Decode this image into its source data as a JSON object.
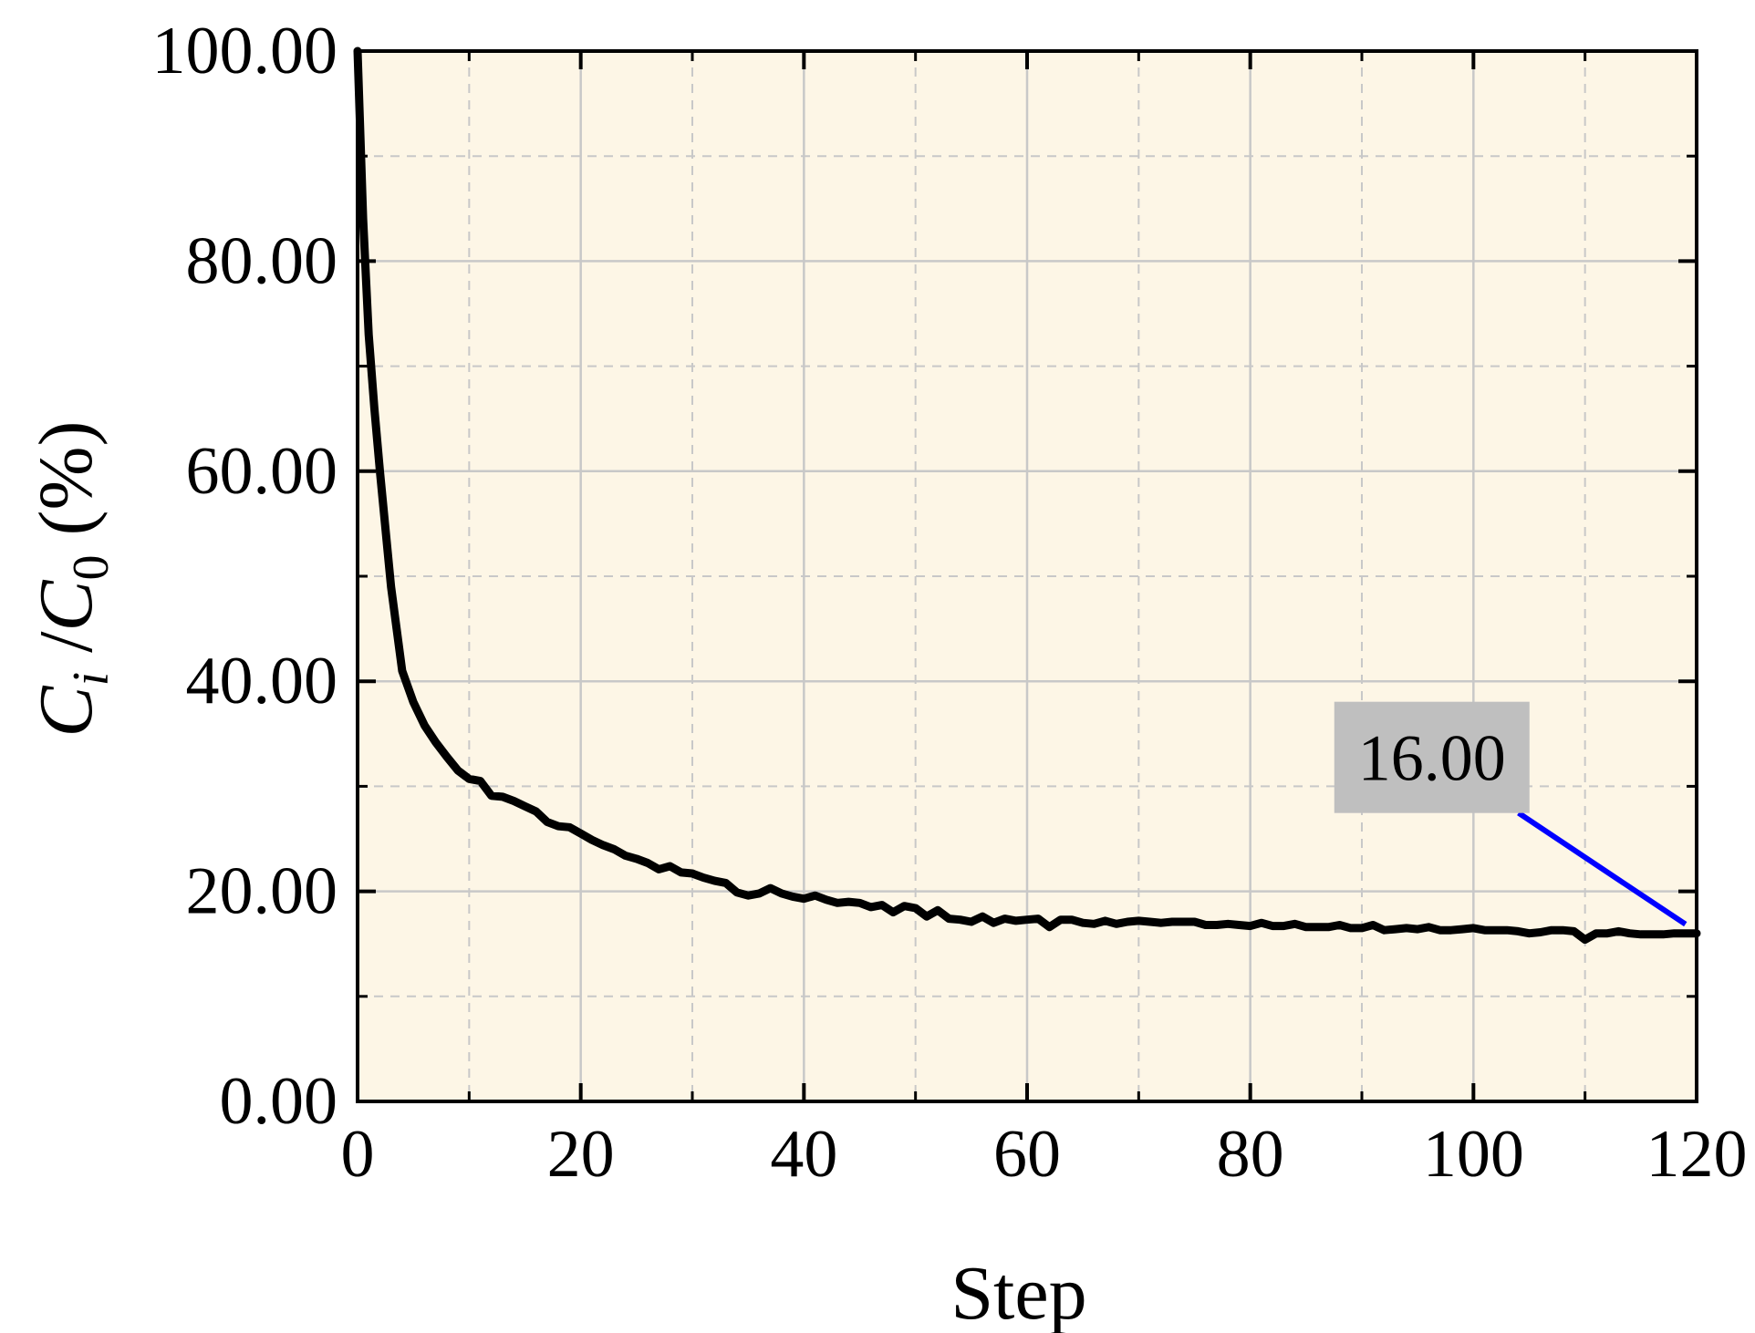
{
  "chart_data": {
    "type": "line",
    "xlabel": "Step",
    "ylabel": {
      "main": "C",
      "sub": "i",
      "sep": " /",
      "main2": "C",
      "sub2": "0",
      "unit": " (%)"
    },
    "xlim": [
      0,
      120
    ],
    "ylim": [
      0,
      100
    ],
    "x_ticks": [
      "0",
      "20",
      "40",
      "60",
      "80",
      "100",
      "120"
    ],
    "y_ticks": [
      "0.00",
      "20.00",
      "40.00",
      "60.00",
      "80.00",
      "100.00"
    ],
    "grid": true,
    "colors": {
      "plot_background": "#fdf6e6",
      "line": "#000000",
      "grid": "#c8c8c8",
      "annotation_box": "#bfbfbf",
      "annotation_leader": "#0000ff"
    },
    "series": [
      {
        "x": [
          0,
          0.5,
          1,
          1.5,
          2,
          3,
          4,
          5,
          6,
          7,
          8,
          9,
          10,
          11,
          12,
          13,
          14,
          15,
          16,
          17,
          18,
          19,
          20,
          21,
          22,
          23,
          24,
          25,
          26,
          27,
          28,
          29,
          30,
          31,
          32,
          33,
          34,
          35,
          36,
          37,
          38,
          39,
          40,
          41,
          42,
          43,
          44,
          45,
          46,
          47,
          48,
          49,
          50,
          51,
          52,
          53,
          54,
          55,
          56,
          57,
          58,
          59,
          60,
          61,
          62,
          63,
          64,
          65,
          66,
          67,
          68,
          69,
          70,
          71,
          72,
          73,
          74,
          75,
          76,
          77,
          78,
          79,
          80,
          81,
          82,
          83,
          84,
          85,
          86,
          87,
          88,
          89,
          90,
          91,
          92,
          93,
          94,
          95,
          96,
          97,
          98,
          99,
          100,
          101,
          102,
          103,
          104,
          105,
          106,
          107,
          108,
          109,
          110,
          111,
          112,
          113,
          114,
          115,
          116,
          117,
          118,
          119,
          120
        ],
        "y": [
          100,
          84,
          73,
          66,
          60,
          49,
          41,
          38,
          35.8,
          34.2,
          32.8,
          31.5,
          30.7,
          30.5,
          29.1,
          29.0,
          28.6,
          28.1,
          27.6,
          26.6,
          26.2,
          26.1,
          25.5,
          24.9,
          24.4,
          24.0,
          23.4,
          23.1,
          22.7,
          22.1,
          22.4,
          21.8,
          21.7,
          21.3,
          21.0,
          20.8,
          19.9,
          19.6,
          19.8,
          20.3,
          19.8,
          19.5,
          19.3,
          19.6,
          19.2,
          18.9,
          19.0,
          18.9,
          18.5,
          18.7,
          18.0,
          18.6,
          18.4,
          17.6,
          18.2,
          17.4,
          17.3,
          17.1,
          17.6,
          17.0,
          17.4,
          17.2,
          17.3,
          17.4,
          16.6,
          17.3,
          17.3,
          17.0,
          16.9,
          17.2,
          16.9,
          17.1,
          17.2,
          17.1,
          17.0,
          17.1,
          17.1,
          17.1,
          16.8,
          16.8,
          16.9,
          16.8,
          16.7,
          17.0,
          16.7,
          16.7,
          16.9,
          16.6,
          16.6,
          16.6,
          16.8,
          16.5,
          16.5,
          16.8,
          16.3,
          16.4,
          16.5,
          16.4,
          16.6,
          16.3,
          16.3,
          16.4,
          16.5,
          16.3,
          16.3,
          16.3,
          16.2,
          16.0,
          16.1,
          16.3,
          16.3,
          16.2,
          15.4,
          16.0,
          16.0,
          16.2,
          16.0,
          15.9,
          15.9,
          15.9,
          16.0,
          16.0,
          16.0
        ]
      }
    ],
    "annotation": {
      "text": "16.00",
      "point_x": 119,
      "point_y": 16.0
    }
  }
}
